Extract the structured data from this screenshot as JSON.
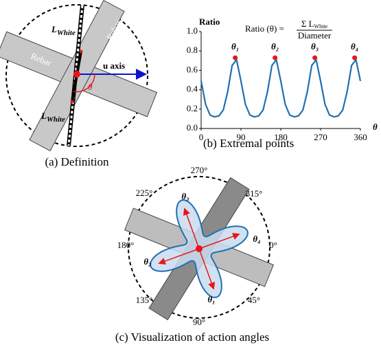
{
  "panel_a": {
    "caption": "(a) Definition",
    "rebar_labels": [
      "Rebar",
      "Rebar"
    ],
    "l_labels": [
      {
        "main": "L",
        "sub": "White"
      },
      {
        "main": "L",
        "sub": "White"
      }
    ],
    "u_axis": "u axis",
    "u_main": "u",
    "theta": "θ"
  },
  "chart_data": {
    "type": "line",
    "caption": "(b) Extremal points",
    "y_label": "Ratio",
    "x_label": "θ",
    "formula": {
      "lhs": "Ratio (θ) =",
      "numerator": "Σ L",
      "numerator_sub": "White",
      "denominator": "Diameter"
    },
    "x": [
      0,
      10,
      20,
      30,
      40,
      50,
      60,
      70,
      80,
      90,
      100,
      110,
      120,
      130,
      140,
      150,
      160,
      170,
      180,
      190,
      200,
      210,
      220,
      230,
      240,
      250,
      260,
      270,
      280,
      290,
      300,
      310,
      320,
      330,
      340,
      350,
      360
    ],
    "series": [
      {
        "color": "#1f6fb4",
        "values": [
          0.49,
          0.25,
          0.14,
          0.12,
          0.13,
          0.19,
          0.38,
          0.65,
          0.71,
          0.49,
          0.25,
          0.14,
          0.12,
          0.13,
          0.19,
          0.38,
          0.65,
          0.71,
          0.49,
          0.25,
          0.14,
          0.12,
          0.13,
          0.19,
          0.38,
          0.65,
          0.71,
          0.49,
          0.25,
          0.14,
          0.12,
          0.13,
          0.19,
          0.38,
          0.65,
          0.71,
          0.49
        ]
      }
    ],
    "peaks": {
      "x": [
        77,
        167,
        257,
        347
      ],
      "values": [
        0.73,
        0.73,
        0.73,
        0.73
      ],
      "labels": [
        "θ₁",
        "θ₂",
        "θ₃",
        "θ₄"
      ],
      "color": "#e8141b"
    },
    "xlim": [
      0,
      360
    ],
    "ylim": [
      0,
      1.0
    ],
    "xticks": [
      0,
      90,
      180,
      270,
      360
    ],
    "yticks": [
      {
        "value": 0,
        "label": "0.0"
      },
      {
        "value": 0.2,
        "label": "0.2"
      },
      {
        "value": 0.4,
        "label": "0.4"
      },
      {
        "value": 0.6,
        "label": "0.6"
      },
      {
        "value": 0.8,
        "label": "0.8"
      },
      {
        "value": 1.0,
        "label": "1.0"
      }
    ]
  },
  "panel_c": {
    "caption": "(c) Visualization of action angles",
    "angles": [
      "270°",
      "315°",
      "0°",
      "45°",
      "90°",
      "135°",
      "180°",
      "225°"
    ],
    "petals": [
      "θ₃",
      "θ₄",
      "θ₁",
      "θ₂"
    ]
  }
}
